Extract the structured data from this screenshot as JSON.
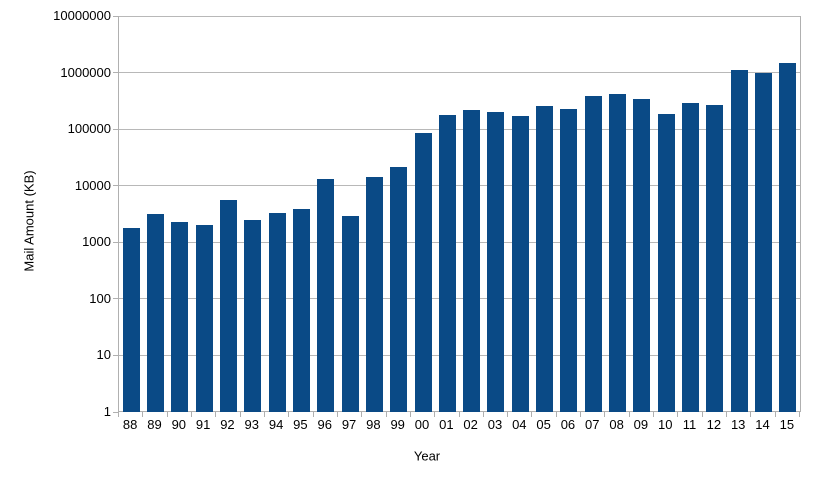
{
  "chart_data": {
    "type": "bar",
    "title": "",
    "xlabel": "Year",
    "ylabel": "Mail Amount (KB)",
    "y_scale": "log",
    "ylim": [
      1,
      10000000
    ],
    "y_ticks": [
      "1",
      "10",
      "100",
      "1000",
      "10000",
      "100000",
      "1000000",
      "10000000"
    ],
    "grid": "horizontal",
    "legend": "none",
    "categories": [
      "88",
      "89",
      "90",
      "91",
      "92",
      "93",
      "94",
      "95",
      "96",
      "97",
      "98",
      "99",
      "00",
      "01",
      "02",
      "03",
      "04",
      "05",
      "06",
      "07",
      "08",
      "09",
      "10",
      "11",
      "12",
      "13",
      "14",
      "15"
    ],
    "values": [
      1800,
      3100,
      2300,
      2000,
      5500,
      2500,
      3300,
      3800,
      13000,
      2900,
      14500,
      21000,
      87000,
      180000,
      220000,
      200000,
      170000,
      255000,
      230000,
      380000,
      420000,
      340000,
      185000,
      295000,
      270000,
      1100000,
      1000000,
      1450000
    ],
    "colors": {
      "bar": "#0a4a86",
      "gridline": "#b8b8b8",
      "axis": "#b0b0b0",
      "text": "#000000"
    }
  }
}
